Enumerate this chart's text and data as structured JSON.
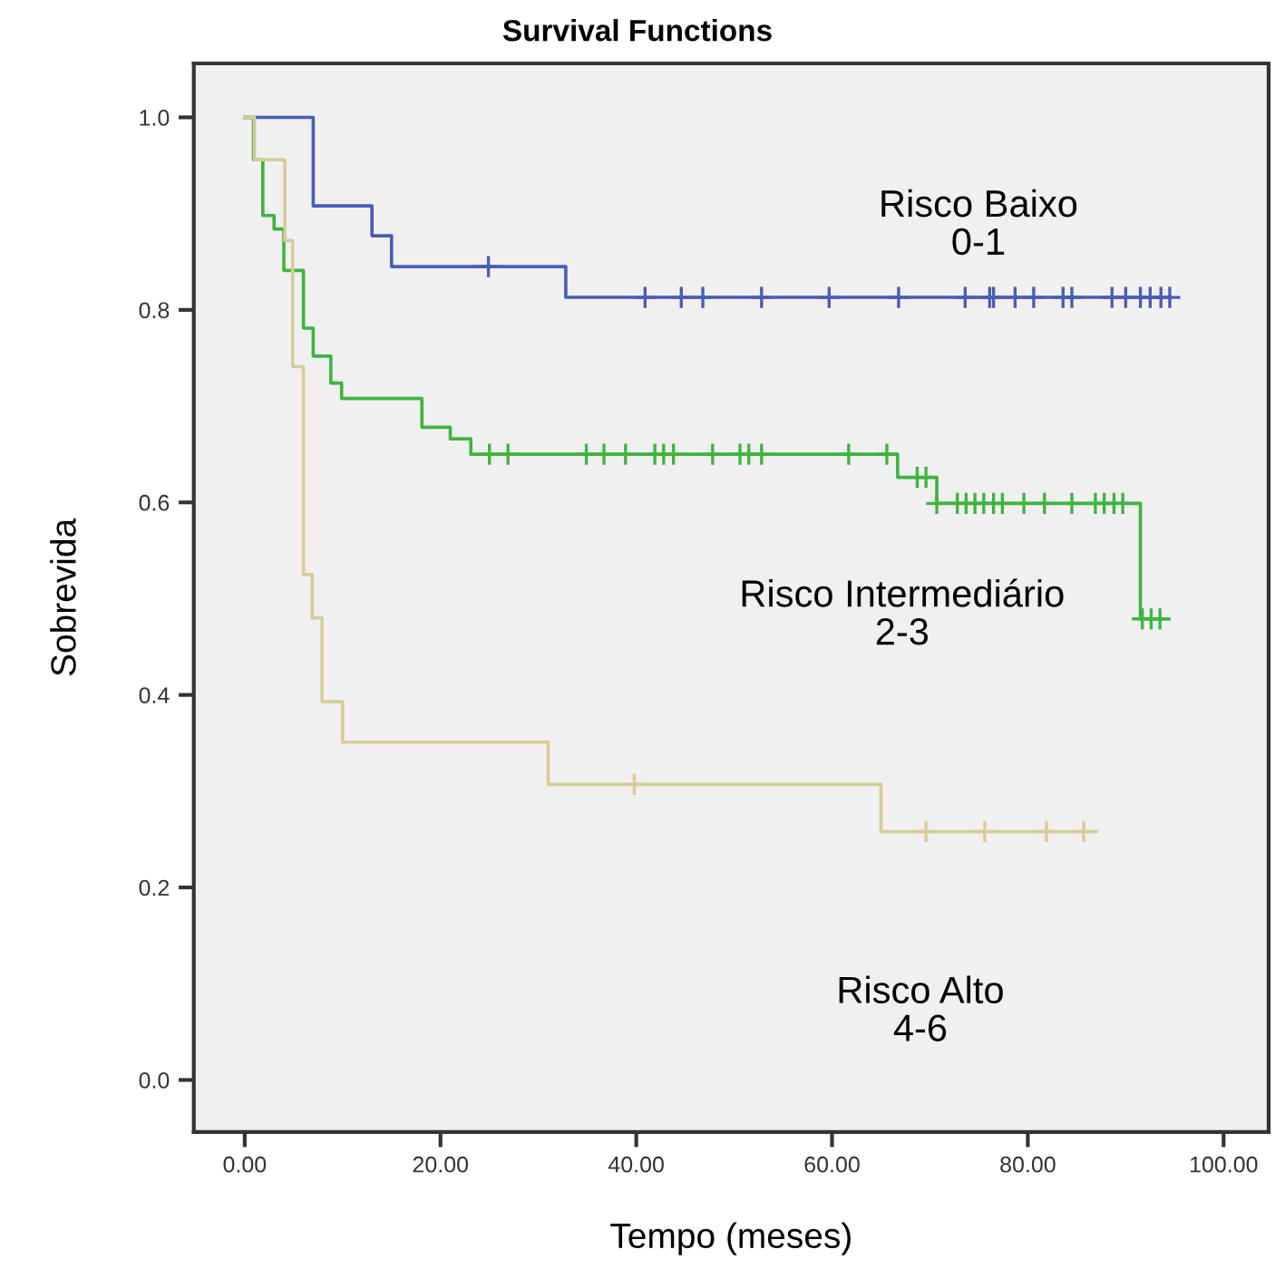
{
  "chart_data": {
    "type": "step",
    "title": "Survival Functions",
    "xlabel": "Tempo (meses)",
    "ylabel": "Sobrevida",
    "xlim": [
      -5.2,
      104.6
    ],
    "ylim": [
      -0.054,
      1.056
    ],
    "xticks": [
      {
        "value": 0,
        "label": "0.00"
      },
      {
        "value": 20,
        "label": "20.00"
      },
      {
        "value": 40,
        "label": "40.00"
      },
      {
        "value": 60,
        "label": "60.00"
      },
      {
        "value": 80,
        "label": "80.00"
      },
      {
        "value": 100,
        "label": "100.00"
      }
    ],
    "yticks": [
      {
        "value": 0,
        "label": "0.0"
      },
      {
        "value": 0.2,
        "label": "0.2"
      },
      {
        "value": 0.4,
        "label": "0.4"
      },
      {
        "value": 0.6,
        "label": "0.6"
      },
      {
        "value": 0.8,
        "label": "0.8"
      },
      {
        "value": 1.0,
        "label": "1.0"
      }
    ],
    "grid": false,
    "marker": "none",
    "line_style": "solid",
    "series": [
      {
        "color": "#4a5cb5",
        "x": [
          0,
          7.0,
          13.0,
          15.0,
          32.8,
          94.5
        ],
        "values": [
          1.0,
          0.908,
          0.877,
          0.845,
          0.813,
          0.813
        ]
      },
      {
        "type": "scatter",
        "marker": "cross",
        "color": "#4a5cb5",
        "x": [
          24.9,
          40.9,
          44.6,
          46.8,
          52.8,
          59.7,
          66.8,
          73.6,
          76.1,
          76.5,
          78.7,
          80.6,
          83.6,
          84.5,
          88.6,
          90.0,
          91.5,
          92.5,
          93.6,
          94.5
        ],
        "values": [
          0.845,
          0.813,
          0.813,
          0.813,
          0.813,
          0.813,
          0.813,
          0.813,
          0.813,
          0.813,
          0.813,
          0.813,
          0.813,
          0.813,
          0.813,
          0.813,
          0.813,
          0.813,
          0.813,
          0.813
        ]
      },
      {
        "color": "#3fb43f",
        "x": [
          0,
          0.9,
          1.85,
          3.0,
          4.0,
          6.0,
          7.0,
          8.8,
          9.9,
          18.1,
          21.0,
          23.1,
          66.7,
          70.7,
          91.5,
          94.4
        ],
        "values": [
          1.0,
          0.956,
          0.898,
          0.884,
          0.841,
          0.781,
          0.752,
          0.724,
          0.708,
          0.678,
          0.666,
          0.65,
          0.626,
          0.599,
          0.479,
          0.479
        ]
      },
      {
        "type": "scatter",
        "marker": "cross",
        "color": "#3fb43f",
        "x": [
          25.0,
          26.9,
          34.9,
          36.7,
          38.9,
          41.9,
          42.8,
          43.8,
          47.8,
          50.6,
          51.5,
          52.8,
          61.7,
          65.6,
          68.7,
          69.6,
          70.7,
          72.8,
          73.7,
          74.6,
          75.5,
          76.5,
          77.4,
          79.6,
          81.7,
          84.5,
          86.9,
          87.8,
          88.8,
          89.7,
          91.7,
          92.6,
          93.5
        ],
        "values": [
          0.65,
          0.65,
          0.65,
          0.65,
          0.65,
          0.65,
          0.65,
          0.65,
          0.65,
          0.65,
          0.65,
          0.65,
          0.65,
          0.65,
          0.626,
          0.626,
          0.599,
          0.599,
          0.599,
          0.599,
          0.599,
          0.599,
          0.599,
          0.599,
          0.599,
          0.599,
          0.599,
          0.599,
          0.599,
          0.599,
          0.479,
          0.479,
          0.479
        ]
      },
      {
        "color": "#d6cc98",
        "x": [
          0,
          1.0,
          4.1,
          4.9,
          6.0,
          6.9,
          7.9,
          10.0,
          31.0,
          65.0,
          87.0
        ],
        "values": [
          1.0,
          0.956,
          0.872,
          0.741,
          0.525,
          0.48,
          0.393,
          0.351,
          0.307,
          0.258,
          0.258
        ]
      },
      {
        "type": "scatter",
        "marker": "cross",
        "color": "#d6cc98",
        "x": [
          39.8,
          69.6,
          75.6,
          81.9,
          85.7
        ],
        "values": [
          0.307,
          0.258,
          0.258,
          0.258,
          0.258
        ]
      }
    ],
    "annotations": [
      "Risco Baixo\n0-1",
      "Risco Intermediário\n2-3",
      "Risco Alto\n4-6"
    ]
  }
}
